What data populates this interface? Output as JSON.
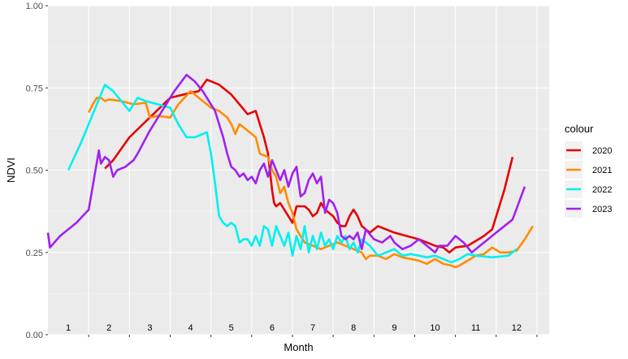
{
  "chart_data": {
    "type": "line",
    "xlabel": "Month",
    "ylabel": "NDVI",
    "xlim": [
      0.5,
      12.8
    ],
    "ylim": [
      0,
      1
    ],
    "x_tick_labels": [
      "1",
      "2",
      "3",
      "4",
      "5",
      "6",
      "7",
      "8",
      "9",
      "10",
      "11",
      "12"
    ],
    "y_ticks": [
      0,
      0.25,
      0.5,
      0.75,
      1
    ],
    "y_tick_labels": [
      "0.00",
      "0.25",
      "0.50",
      "0.75",
      "1.00"
    ],
    "grid": true,
    "legend": {
      "title": "colour",
      "placement": "right"
    },
    "series": [
      {
        "name": "2020",
        "color": "#e60000",
        "points": [
          [
            1.9,
            0.505
          ],
          [
            2.1,
            0.53
          ],
          [
            2.5,
            0.6
          ],
          [
            3.0,
            0.66
          ],
          [
            3.5,
            0.72
          ],
          [
            4.0,
            0.735
          ],
          [
            4.2,
            0.74
          ],
          [
            4.4,
            0.775
          ],
          [
            4.7,
            0.76
          ],
          [
            5.0,
            0.73
          ],
          [
            5.2,
            0.7
          ],
          [
            5.4,
            0.67
          ],
          [
            5.6,
            0.68
          ],
          [
            5.7,
            0.64
          ],
          [
            5.8,
            0.6
          ],
          [
            5.9,
            0.55
          ],
          [
            6.0,
            0.44
          ],
          [
            6.05,
            0.4
          ],
          [
            6.1,
            0.39
          ],
          [
            6.2,
            0.4
          ],
          [
            6.3,
            0.38
          ],
          [
            6.4,
            0.36
          ],
          [
            6.5,
            0.34
          ],
          [
            6.6,
            0.39
          ],
          [
            6.8,
            0.39
          ],
          [
            6.9,
            0.38
          ],
          [
            7.0,
            0.36
          ],
          [
            7.1,
            0.37
          ],
          [
            7.2,
            0.4
          ],
          [
            7.3,
            0.38
          ],
          [
            7.4,
            0.37
          ],
          [
            7.5,
            0.36
          ],
          [
            7.6,
            0.34
          ],
          [
            7.7,
            0.33
          ],
          [
            7.8,
            0.33
          ],
          [
            7.9,
            0.36
          ],
          [
            8.0,
            0.38
          ],
          [
            8.1,
            0.36
          ],
          [
            8.2,
            0.33
          ],
          [
            8.4,
            0.31
          ],
          [
            8.6,
            0.33
          ],
          [
            8.8,
            0.32
          ],
          [
            9.0,
            0.31
          ],
          [
            9.3,
            0.3
          ],
          [
            9.6,
            0.29
          ],
          [
            9.8,
            0.28
          ],
          [
            10.0,
            0.27
          ],
          [
            10.2,
            0.265
          ],
          [
            10.35,
            0.25
          ],
          [
            10.5,
            0.265
          ],
          [
            10.8,
            0.27
          ],
          [
            11.2,
            0.3
          ],
          [
            11.4,
            0.32
          ],
          [
            11.7,
            0.44
          ],
          [
            11.9,
            0.54
          ]
        ]
      },
      {
        "name": "2021",
        "color": "#ff8c00",
        "points": [
          [
            1.5,
            0.675
          ],
          [
            1.6,
            0.7
          ],
          [
            1.7,
            0.72
          ],
          [
            1.8,
            0.72
          ],
          [
            1.9,
            0.71
          ],
          [
            2.0,
            0.715
          ],
          [
            2.3,
            0.71
          ],
          [
            2.6,
            0.7
          ],
          [
            2.9,
            0.705
          ],
          [
            3.0,
            0.66
          ],
          [
            3.2,
            0.665
          ],
          [
            3.5,
            0.66
          ],
          [
            3.7,
            0.7
          ],
          [
            4.0,
            0.74
          ],
          [
            4.2,
            0.72
          ],
          [
            4.5,
            0.69
          ],
          [
            4.7,
            0.68
          ],
          [
            4.9,
            0.66
          ],
          [
            5.0,
            0.64
          ],
          [
            5.1,
            0.61
          ],
          [
            5.2,
            0.64
          ],
          [
            5.4,
            0.62
          ],
          [
            5.6,
            0.6
          ],
          [
            5.7,
            0.55
          ],
          [
            5.9,
            0.54
          ],
          [
            6.0,
            0.5
          ],
          [
            6.1,
            0.48
          ],
          [
            6.2,
            0.43
          ],
          [
            6.3,
            0.45
          ],
          [
            6.4,
            0.4
          ],
          [
            6.5,
            0.37
          ],
          [
            6.6,
            0.32
          ],
          [
            6.7,
            0.3
          ],
          [
            6.8,
            0.28
          ],
          [
            7.0,
            0.27
          ],
          [
            7.2,
            0.26
          ],
          [
            7.4,
            0.27
          ],
          [
            7.6,
            0.28
          ],
          [
            7.8,
            0.27
          ],
          [
            8.0,
            0.26
          ],
          [
            8.2,
            0.25
          ],
          [
            8.3,
            0.23
          ],
          [
            8.4,
            0.24
          ],
          [
            8.6,
            0.24
          ],
          [
            8.8,
            0.23
          ],
          [
            9.0,
            0.245
          ],
          [
            9.2,
            0.235
          ],
          [
            9.4,
            0.23
          ],
          [
            9.6,
            0.225
          ],
          [
            9.8,
            0.215
          ],
          [
            10.0,
            0.23
          ],
          [
            10.2,
            0.215
          ],
          [
            10.4,
            0.21
          ],
          [
            10.5,
            0.205
          ],
          [
            10.6,
            0.21
          ],
          [
            10.8,
            0.225
          ],
          [
            11.0,
            0.24
          ],
          [
            11.2,
            0.245
          ],
          [
            11.4,
            0.265
          ],
          [
            11.6,
            0.25
          ],
          [
            11.8,
            0.25
          ],
          [
            12.0,
            0.255
          ],
          [
            12.2,
            0.29
          ],
          [
            12.4,
            0.33
          ]
        ]
      },
      {
        "name": "2022",
        "color": "#00f0f0",
        "points": [
          [
            1.0,
            0.5
          ],
          [
            1.3,
            0.58
          ],
          [
            1.6,
            0.67
          ],
          [
            1.9,
            0.76
          ],
          [
            2.1,
            0.74
          ],
          [
            2.3,
            0.71
          ],
          [
            2.5,
            0.68
          ],
          [
            2.7,
            0.72
          ],
          [
            2.9,
            0.71
          ],
          [
            3.2,
            0.7
          ],
          [
            3.5,
            0.69
          ],
          [
            3.7,
            0.64
          ],
          [
            3.9,
            0.6
          ],
          [
            4.1,
            0.6
          ],
          [
            4.3,
            0.61
          ],
          [
            4.4,
            0.615
          ],
          [
            4.5,
            0.55
          ],
          [
            4.6,
            0.46
          ],
          [
            4.7,
            0.36
          ],
          [
            4.8,
            0.34
          ],
          [
            4.9,
            0.33
          ],
          [
            5.0,
            0.34
          ],
          [
            5.1,
            0.33
          ],
          [
            5.2,
            0.28
          ],
          [
            5.3,
            0.29
          ],
          [
            5.4,
            0.29
          ],
          [
            5.5,
            0.27
          ],
          [
            5.6,
            0.3
          ],
          [
            5.7,
            0.27
          ],
          [
            5.8,
            0.33
          ],
          [
            5.9,
            0.32
          ],
          [
            6.0,
            0.27
          ],
          [
            6.1,
            0.33
          ],
          [
            6.2,
            0.3
          ],
          [
            6.3,
            0.27
          ],
          [
            6.4,
            0.31
          ],
          [
            6.5,
            0.24
          ],
          [
            6.6,
            0.3
          ],
          [
            6.7,
            0.26
          ],
          [
            6.8,
            0.33
          ],
          [
            6.9,
            0.25
          ],
          [
            7.0,
            0.3
          ],
          [
            7.1,
            0.26
          ],
          [
            7.2,
            0.31
          ],
          [
            7.3,
            0.27
          ],
          [
            7.4,
            0.29
          ],
          [
            7.5,
            0.26
          ],
          [
            7.6,
            0.3
          ],
          [
            7.7,
            0.28
          ],
          [
            7.8,
            0.3
          ],
          [
            7.9,
            0.26
          ],
          [
            8.0,
            0.28
          ],
          [
            8.1,
            0.25
          ],
          [
            8.2,
            0.29
          ],
          [
            8.4,
            0.27
          ],
          [
            8.6,
            0.24
          ],
          [
            8.8,
            0.25
          ],
          [
            9.0,
            0.26
          ],
          [
            9.2,
            0.24
          ],
          [
            9.4,
            0.245
          ],
          [
            9.6,
            0.24
          ],
          [
            9.8,
            0.235
          ],
          [
            10.0,
            0.24
          ],
          [
            10.2,
            0.23
          ],
          [
            10.4,
            0.22
          ],
          [
            10.6,
            0.23
          ],
          [
            10.8,
            0.245
          ],
          [
            11.0,
            0.24
          ],
          [
            11.4,
            0.235
          ],
          [
            11.8,
            0.24
          ],
          [
            12.0,
            0.26
          ]
        ]
      },
      {
        "name": "2023",
        "color": "#a020f0",
        "points": [
          [
            0.5,
            0.31
          ],
          [
            0.55,
            0.265
          ],
          [
            0.8,
            0.3
          ],
          [
            1.2,
            0.34
          ],
          [
            1.5,
            0.38
          ],
          [
            1.75,
            0.56
          ],
          [
            1.8,
            0.52
          ],
          [
            1.9,
            0.54
          ],
          [
            2.0,
            0.53
          ],
          [
            2.1,
            0.48
          ],
          [
            2.2,
            0.5
          ],
          [
            2.4,
            0.51
          ],
          [
            2.6,
            0.53
          ],
          [
            2.7,
            0.55
          ],
          [
            3.0,
            0.62
          ],
          [
            3.3,
            0.68
          ],
          [
            3.6,
            0.74
          ],
          [
            3.9,
            0.79
          ],
          [
            4.1,
            0.77
          ],
          [
            4.3,
            0.74
          ],
          [
            4.6,
            0.68
          ],
          [
            4.8,
            0.6
          ],
          [
            4.9,
            0.55
          ],
          [
            5.0,
            0.51
          ],
          [
            5.1,
            0.5
          ],
          [
            5.2,
            0.48
          ],
          [
            5.3,
            0.49
          ],
          [
            5.4,
            0.47
          ],
          [
            5.5,
            0.48
          ],
          [
            5.6,
            0.46
          ],
          [
            5.7,
            0.5
          ],
          [
            5.8,
            0.52
          ],
          [
            5.9,
            0.48
          ],
          [
            6.0,
            0.53
          ],
          [
            6.1,
            0.5
          ],
          [
            6.2,
            0.47
          ],
          [
            6.3,
            0.5
          ],
          [
            6.4,
            0.45
          ],
          [
            6.5,
            0.49
          ],
          [
            6.6,
            0.51
          ],
          [
            6.7,
            0.42
          ],
          [
            6.8,
            0.43
          ],
          [
            6.9,
            0.47
          ],
          [
            7.0,
            0.49
          ],
          [
            7.1,
            0.46
          ],
          [
            7.2,
            0.48
          ],
          [
            7.3,
            0.37
          ],
          [
            7.4,
            0.41
          ],
          [
            7.5,
            0.4
          ],
          [
            7.6,
            0.37
          ],
          [
            7.7,
            0.3
          ],
          [
            7.8,
            0.29
          ],
          [
            7.9,
            0.3
          ],
          [
            8.0,
            0.29
          ],
          [
            8.1,
            0.31
          ],
          [
            8.2,
            0.26
          ],
          [
            8.3,
            0.32
          ],
          [
            8.5,
            0.29
          ],
          [
            8.7,
            0.28
          ],
          [
            8.9,
            0.3
          ],
          [
            9.0,
            0.28
          ],
          [
            9.2,
            0.26
          ],
          [
            9.4,
            0.27
          ],
          [
            9.6,
            0.29
          ],
          [
            9.8,
            0.27
          ],
          [
            10.0,
            0.25
          ],
          [
            10.1,
            0.27
          ],
          [
            10.3,
            0.27
          ],
          [
            10.5,
            0.3
          ],
          [
            10.7,
            0.28
          ],
          [
            10.9,
            0.25
          ],
          [
            11.2,
            0.28
          ],
          [
            11.5,
            0.31
          ],
          [
            11.9,
            0.35
          ],
          [
            12.2,
            0.45
          ]
        ]
      }
    ]
  }
}
